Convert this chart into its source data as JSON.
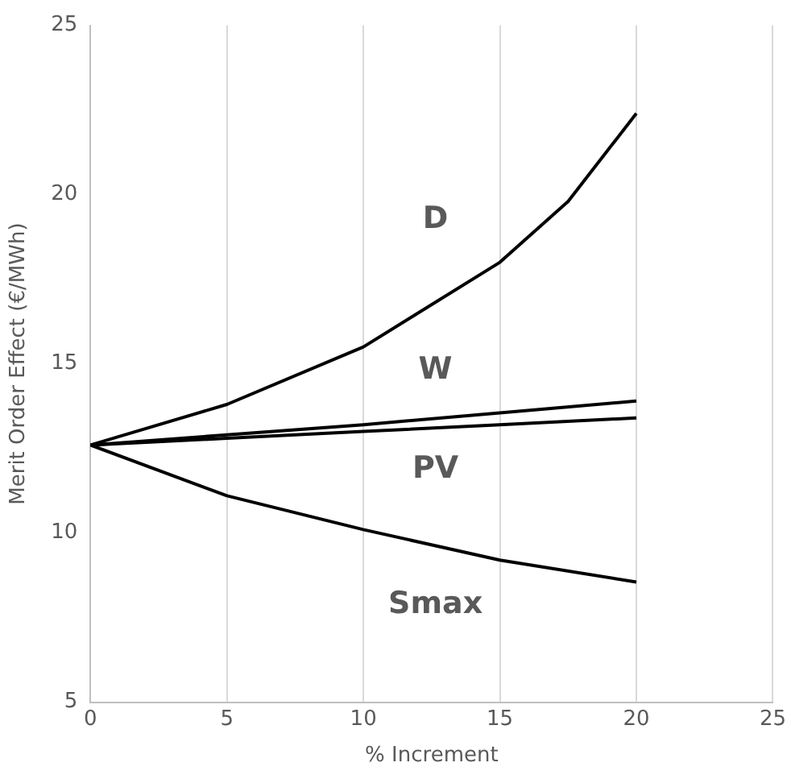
{
  "chart_data": {
    "type": "line",
    "xlabel": "% Increment",
    "ylabel": "Merit Order Effect (€/MWh)",
    "xlim": [
      0,
      25
    ],
    "xticks": [
      0,
      5,
      10,
      15,
      20,
      25
    ],
    "ylim": [
      5,
      25
    ],
    "yticks": [
      5,
      10,
      15,
      20,
      25
    ],
    "grid": "x",
    "legend": false,
    "marker": "none",
    "line_style": "solid",
    "series": [
      {
        "name": "D",
        "color": "#000000",
        "x": [
          0,
          5,
          10,
          15,
          17.5,
          20
        ],
        "values": [
          12.6,
          13.8,
          15.5,
          18.0,
          19.8,
          22.4
        ]
      },
      {
        "name": "W",
        "color": "#000000",
        "x": [
          0,
          5,
          10,
          15,
          20
        ],
        "values": [
          12.6,
          12.9,
          13.2,
          13.55,
          13.9
        ]
      },
      {
        "name": "PV",
        "color": "#000000",
        "x": [
          0,
          5,
          10,
          15,
          20
        ],
        "values": [
          12.6,
          12.8,
          13.0,
          13.2,
          13.4
        ]
      },
      {
        "name": "Smax",
        "color": "#000000",
        "x": [
          0,
          5,
          10,
          15,
          20
        ],
        "values": [
          12.6,
          11.1,
          10.1,
          9.2,
          8.55
        ]
      }
    ]
  }
}
